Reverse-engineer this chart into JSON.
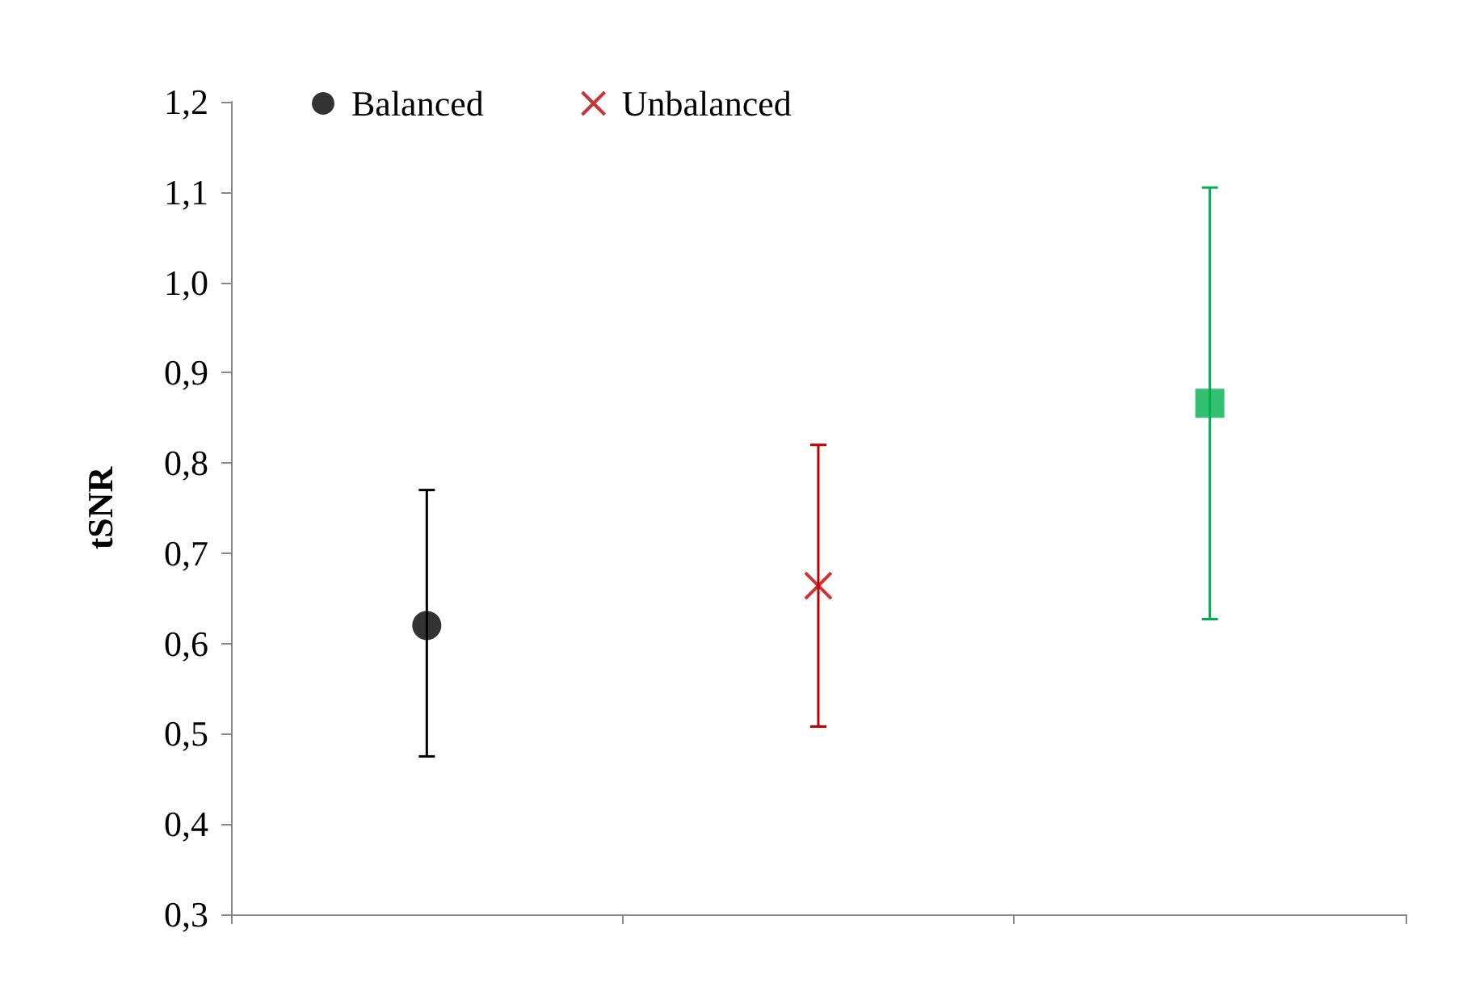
{
  "chart_data": {
    "type": "scatter",
    "ylabel": "tSNR",
    "categories": [
      null,
      null,
      null
    ],
    "series": [
      {
        "name": "Balanced",
        "color": "#000000",
        "marker": "circle",
        "values": [
          0.62,
          null,
          null
        ],
        "errors": [
          [
            0.475,
            0.77
          ],
          null,
          null
        ]
      },
      {
        "name": "Unbalanced",
        "color": "#c00000",
        "marker": "cross",
        "values": [
          null,
          0.664,
          null
        ],
        "errors": [
          null,
          [
            0.508,
            0.82
          ],
          null
        ]
      },
      {
        "color": "#00b050",
        "marker": "square",
        "values": [
          null,
          null,
          0.866
        ],
        "errors": [
          null,
          null,
          [
            0.627,
            1.105
          ]
        ]
      }
    ],
    "ylim": [
      0.3,
      1.2
    ],
    "yticks": [
      {
        "value": 0.3,
        "label": "0,3"
      },
      {
        "value": 0.4,
        "label": "0,4"
      },
      {
        "value": 0.5,
        "label": "0,5"
      },
      {
        "value": 0.6,
        "label": "0,6"
      },
      {
        "value": 0.7,
        "label": "0,7"
      },
      {
        "value": 0.8,
        "label": "0,8"
      },
      {
        "value": 0.9,
        "label": "0,9"
      },
      {
        "value": 1.0,
        "label": "1,0"
      },
      {
        "value": 1.1,
        "label": "1,1"
      },
      {
        "value": 1.2,
        "label": "1,2"
      }
    ],
    "grid": false,
    "legend": "top"
  }
}
